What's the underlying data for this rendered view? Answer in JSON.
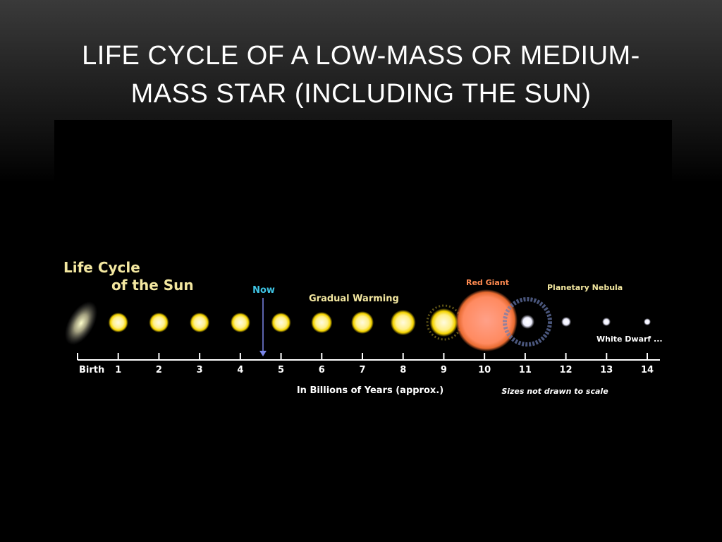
{
  "header": {
    "title": "LIFE CYCLE OF A LOW-MASS OR MEDIUM-MASS STAR (INCLUDING THE SUN)"
  },
  "diagram": {
    "heading": [
      "Life Cycle",
      "of the Sun"
    ],
    "labels": {
      "now": "Now",
      "warming": "Gradual Warming",
      "red_giant": "Red Giant",
      "nebula": "Planetary Nebula",
      "white_dwarf": "White Dwarf ..."
    },
    "ticks": [
      "Birth",
      "1",
      "2",
      "3",
      "4",
      "5",
      "6",
      "7",
      "8",
      "9",
      "10",
      "11",
      "12",
      "13",
      "14"
    ],
    "axis_label": "In Billions of Years (approx.)",
    "note": "Sizes not drawn to scale"
  }
}
